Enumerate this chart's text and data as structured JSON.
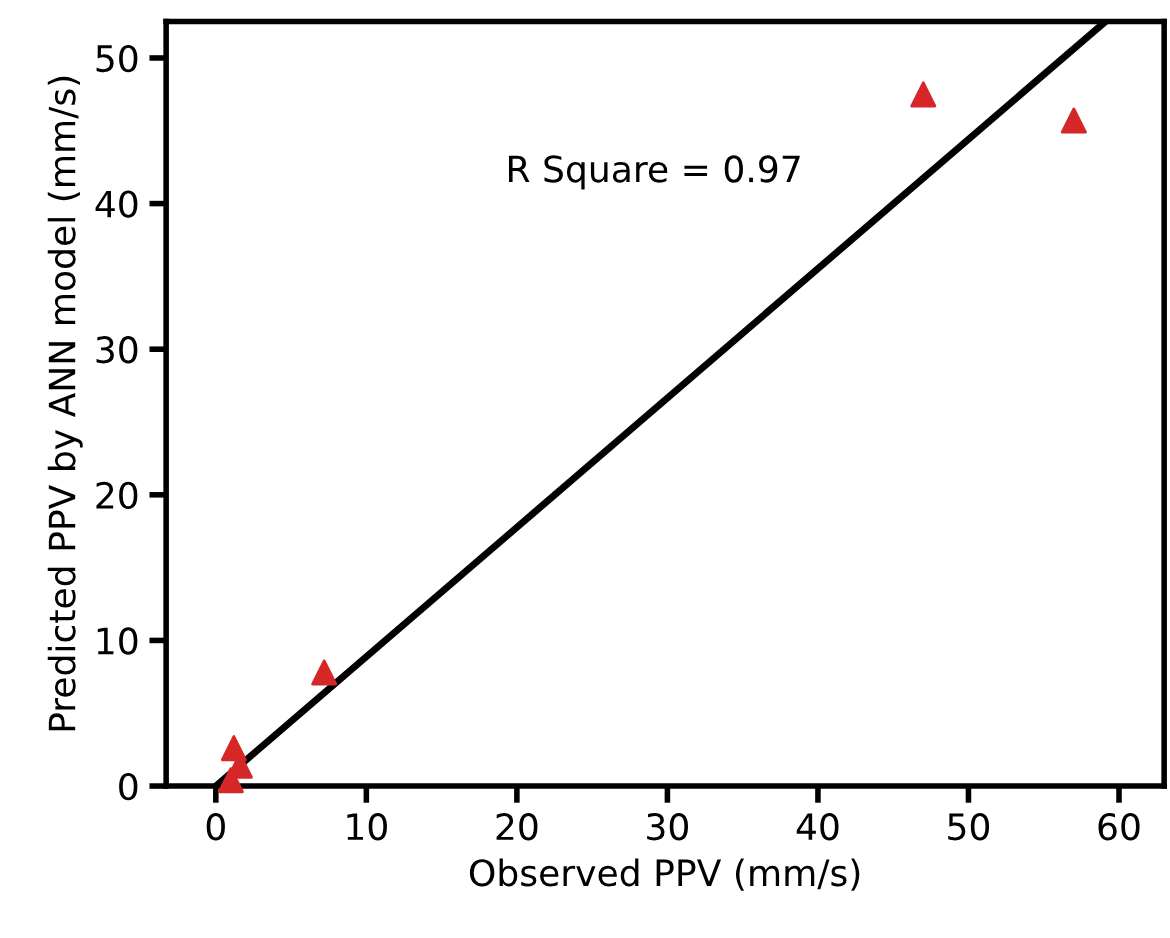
{
  "chart_data": {
    "type": "scatter",
    "xlabel": "Observed PPV (mm/s)",
    "ylabel": "Predicted PPV by ANN model (mm/s)",
    "xlim": [
      -3.3,
      63
    ],
    "ylim": [
      0,
      52.5
    ],
    "xticks": [
      0,
      10,
      20,
      30,
      40,
      50,
      60
    ],
    "yticks": [
      0,
      10,
      20,
      30,
      40,
      50
    ],
    "grid": false,
    "annotations": [
      "R Square = 0.97"
    ],
    "series": [
      {
        "marker": "triangle",
        "color": "#d62728",
        "x": [
          47,
          57,
          7.2,
          1.2,
          1.6,
          1.0
        ],
        "values": [
          47.5,
          45.7,
          7.8,
          2.6,
          1.4,
          0.4
        ]
      },
      {
        "type": "line",
        "color": "#000000",
        "line_style": "solid",
        "x": [
          0,
          59.1
        ],
        "values": [
          0,
          52.5
        ]
      }
    ]
  }
}
